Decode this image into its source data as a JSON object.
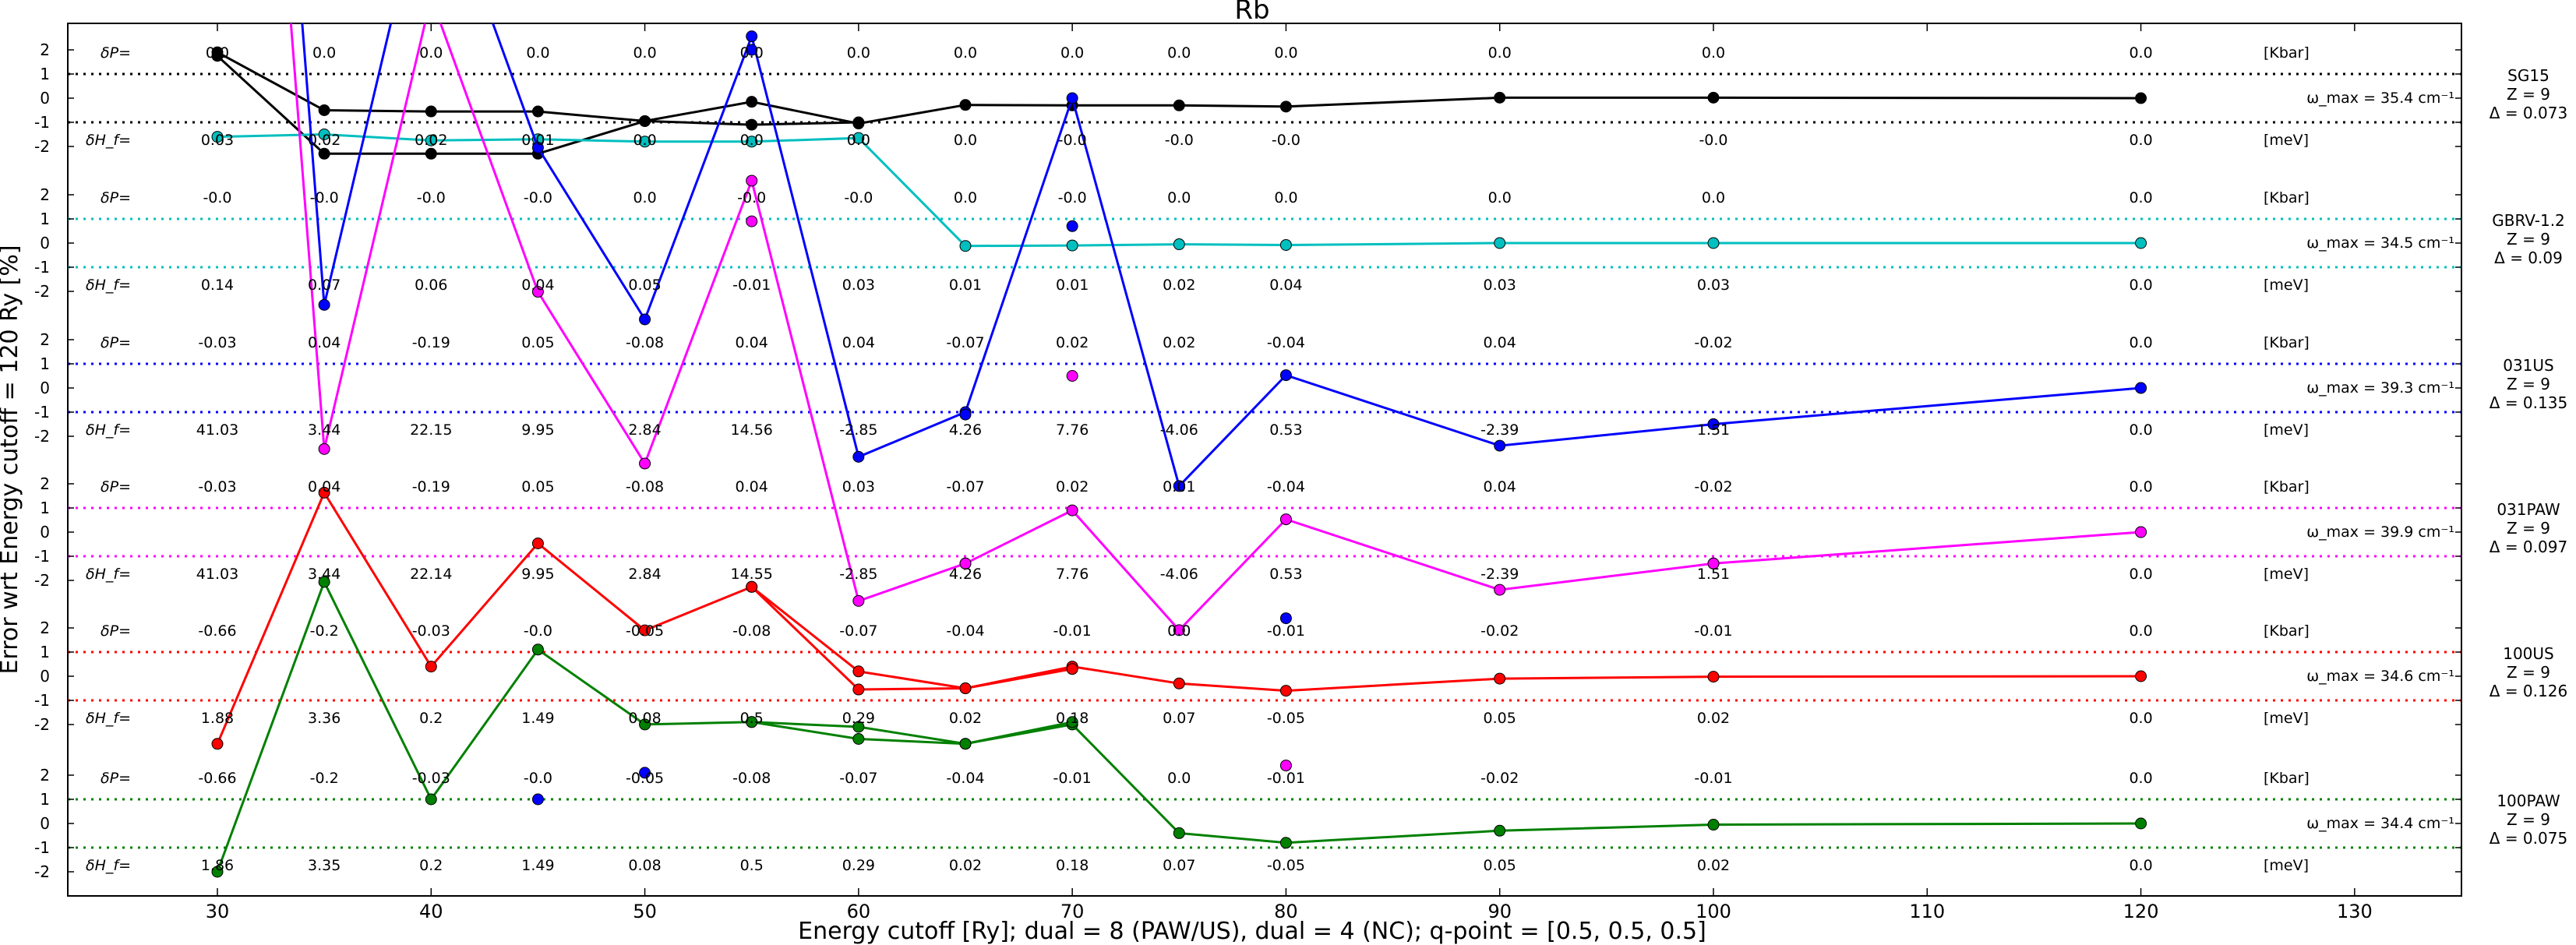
{
  "chart_data": {
    "type": "line",
    "title": "Rb",
    "xlabel": "Energy cutoff [Ry]; dual = 8 (PAW/US), dual = 4 (NC); q-point = [0.5, 0.5, 0.5]",
    "ylabel": "Error wrt Energy cutoff = 120 Ry [%]",
    "xlim": [
      23,
      135
    ],
    "xticks": [
      30,
      40,
      50,
      60,
      70,
      80,
      90,
      100,
      110,
      120,
      130
    ],
    "x": [
      30,
      35,
      40,
      45,
      50,
      55,
      60,
      65,
      70,
      75,
      80,
      90,
      100,
      120
    ],
    "panel_yticks": [
      "2",
      "1",
      "0",
      "-1",
      "-2"
    ],
    "units": {
      "pressure": "[Kbar]",
      "enthalpy": "[meV]"
    },
    "row_labels": {
      "pressure": "δP=",
      "enthalpy": "δH_f="
    },
    "series": [
      {
        "name": "SG15",
        "color": "#000000",
        "z": "Z = 9",
        "delta": "Δ = 0.073",
        "omega": "ω_max = 35.4 cm⁻¹",
        "x_dp": [
          30,
          35,
          40,
          45,
          50,
          55,
          60,
          65,
          70,
          75,
          80,
          90,
          100,
          120
        ],
        "dP": [
          "0.0",
          "0.0",
          "0.0",
          "0.0",
          "0.0",
          "0.0",
          "0.0",
          "0.0",
          "0.0",
          "0.0",
          "0.0",
          "0.0",
          "0.0",
          "0.0"
        ],
        "x_dh": [
          30,
          35,
          40,
          45,
          50,
          55,
          60,
          65,
          70,
          75,
          80,
          100,
          120
        ],
        "dH": [
          "0.03",
          "0.02",
          "0.02",
          "0.01",
          "0.0",
          "0.0",
          "0.0",
          "0.0",
          "-0.0",
          "-0.0",
          "-0.0",
          "-0.0",
          "0.0"
        ],
        "lines": [
          {
            "x": [
              30,
              35,
              40,
              45,
              50,
              55,
              60,
              65,
              70,
              75,
              80,
              90,
              100,
              120
            ],
            "y": [
              1.9,
              -0.5,
              -0.55,
              -0.55,
              -0.95,
              -0.15,
              -1.05,
              -0.28,
              -0.3,
              -0.3,
              -0.35,
              0.02,
              0.02,
              0.0
            ]
          },
          {
            "x": [
              30,
              35,
              40,
              45,
              50,
              55,
              60
            ],
            "y": [
              1.75,
              -2.3,
              -2.3,
              -2.3,
              -0.95,
              -1.1,
              -1.0
            ]
          }
        ]
      },
      {
        "name": "GBRV-1.2",
        "color": "#00bfbf",
        "z": "Z = 9",
        "delta": "Δ = 0.09",
        "omega": "ω_max = 34.5 cm⁻¹",
        "x_dp": [
          30,
          35,
          40,
          45,
          50,
          55,
          60,
          65,
          70,
          75,
          80,
          90,
          100,
          120
        ],
        "dP": [
          "-0.0",
          "-0.0",
          "-0.0",
          "-0.0",
          "0.0",
          "-0.0",
          "-0.0",
          "0.0",
          "-0.0",
          "0.0",
          "0.0",
          "0.0",
          "0.0",
          "0.0"
        ],
        "x_dh": [
          30,
          35,
          40,
          45,
          50,
          55,
          60,
          65,
          70,
          75,
          80,
          90,
          100,
          120
        ],
        "dH": [
          "0.14",
          "0.07",
          "0.06",
          "0.04",
          "0.05",
          "-0.01",
          "0.03",
          "0.01",
          "0.01",
          "0.02",
          "0.04",
          "0.03",
          "0.03",
          "0.0"
        ],
        "lines": [
          {
            "x": [
              30,
              35,
              40,
              45,
              50,
              55,
              60,
              65,
              70,
              75,
              80,
              90,
              100,
              120
            ],
            "y": [
              4.4,
              4.5,
              4.25,
              4.3,
              4.2,
              4.2,
              4.35,
              -0.12,
              -0.1,
              -0.05,
              -0.08,
              0.0,
              0.0,
              0.0
            ]
          }
        ]
      },
      {
        "name": "031US",
        "color": "#0000ff",
        "z": "Z = 9",
        "delta": "Δ = 0.135",
        "omega": "ω_max = 39.3 cm⁻¹",
        "x_dp": [
          30,
          35,
          40,
          45,
          50,
          55,
          60,
          65,
          70,
          75,
          80,
          90,
          100,
          120
        ],
        "dP": [
          "-0.03",
          "0.04",
          "-0.19",
          "0.05",
          "-0.08",
          "0.04",
          "0.04",
          "-0.07",
          "0.02",
          "0.02",
          "-0.04",
          "0.04",
          "-0.02",
          "0.0"
        ],
        "x_dh": [
          30,
          35,
          40,
          45,
          50,
          55,
          60,
          65,
          70,
          75,
          80,
          90,
          100,
          120
        ],
        "dH": [
          "41.03",
          "3.44",
          "22.15",
          "9.95",
          "2.84",
          "14.56",
          "-2.85",
          "4.26",
          "7.76",
          "-4.06",
          "0.53",
          "-2.39",
          "1.51",
          "0.0"
        ],
        "lines": [
          {
            "x": [
              30,
              35,
              40,
              45,
              50,
              55,
              60,
              65,
              70,
              75,
              80,
              90,
              100,
              120
            ],
            "y": [
              60,
              3.44,
              22.15,
              9.95,
              2.84,
              14.56,
              -2.85,
              -1.0,
              12.0,
              -4.06,
              0.53,
              -2.39,
              -1.5,
              0.0
            ]
          }
        ]
      },
      {
        "name": "031PAW",
        "color": "#ff00ff",
        "z": "Z = 9",
        "delta": "Δ = 0.097",
        "omega": "ω_max = 39.9 cm⁻¹",
        "x_dp": [
          30,
          35,
          40,
          45,
          50,
          55,
          60,
          65,
          70,
          75,
          80,
          90,
          100,
          120
        ],
        "dP": [
          "-0.03",
          "0.04",
          "-0.19",
          "0.05",
          "-0.08",
          "0.04",
          "0.03",
          "-0.07",
          "0.02",
          "0.01",
          "-0.04",
          "0.04",
          "-0.02",
          "0.0"
        ],
        "x_dh": [
          30,
          35,
          40,
          45,
          50,
          55,
          60,
          65,
          70,
          75,
          80,
          90,
          100,
          120
        ],
        "dH": [
          "41.03",
          "3.44",
          "22.14",
          "9.95",
          "2.84",
          "14.55",
          "-2.85",
          "4.26",
          "7.76",
          "-4.06",
          "0.53",
          "-2.39",
          "1.51",
          "0.0"
        ],
        "lines": [
          {
            "x": [
              30,
              35,
              40,
              45,
              50,
              55,
              60,
              65,
              70,
              75,
              80,
              90,
              100,
              120
            ],
            "y": [
              60,
              3.44,
              22.14,
              9.95,
              2.84,
              14.55,
              -2.85,
              -1.3,
              0.9,
              -4.06,
              0.53,
              -2.39,
              -1.3,
              0.0
            ]
          }
        ]
      },
      {
        "name": "100US",
        "color": "#ff0000",
        "z": "Z = 9",
        "delta": "Δ = 0.126",
        "omega": "ω_max = 34.6 cm⁻¹",
        "x_dp": [
          30,
          35,
          40,
          45,
          50,
          55,
          60,
          65,
          70,
          75,
          80,
          90,
          100,
          120
        ],
        "dP": [
          "-0.66",
          "-0.2",
          "-0.03",
          "-0.0",
          "-0.05",
          "-0.08",
          "-0.07",
          "-0.04",
          "-0.01",
          "0.0",
          "-0.01",
          "-0.02",
          "-0.01",
          "0.0"
        ],
        "x_dh": [
          30,
          35,
          40,
          45,
          50,
          55,
          60,
          65,
          70,
          75,
          80,
          90,
          100,
          120
        ],
        "dH": [
          "1.88",
          "3.36",
          "0.2",
          "1.49",
          "0.08",
          "0.5",
          "0.29",
          "0.02",
          "0.18",
          "0.07",
          "-0.05",
          "0.05",
          "0.02",
          "0.0"
        ],
        "lines": [
          {
            "x": [
              30,
              35,
              40,
              45,
              50,
              55,
              60,
              65,
              70,
              75,
              80,
              90,
              100,
              120
            ],
            "y": [
              -2.8,
              7.6,
              0.4,
              5.5,
              1.9,
              3.7,
              0.2,
              -0.5,
              0.4,
              -0.3,
              -0.6,
              -0.1,
              -0.02,
              0.0
            ]
          },
          {
            "x": [
              55,
              60,
              65,
              70
            ],
            "y": [
              3.7,
              -0.55,
              -0.5,
              0.3
            ]
          }
        ]
      },
      {
        "name": "100PAW",
        "color": "#008000",
        "z": "Z = 9",
        "delta": "Δ = 0.075",
        "omega": "ω_max = 34.4 cm⁻¹",
        "x_dp": [
          30,
          35,
          40,
          45,
          50,
          55,
          60,
          65,
          70,
          75,
          80,
          90,
          100,
          120
        ],
        "dP": [
          "-0.66",
          "-0.2",
          "-0.03",
          "-0.0",
          "-0.05",
          "-0.08",
          "-0.07",
          "-0.04",
          "-0.01",
          "0.0",
          "-0.01",
          "-0.02",
          "-0.01",
          "0.0"
        ],
        "x_dh": [
          30,
          35,
          40,
          45,
          50,
          55,
          60,
          65,
          70,
          75,
          80,
          90,
          100,
          120
        ],
        "dH": [
          "1.86",
          "3.35",
          "0.2",
          "1.49",
          "0.08",
          "0.5",
          "0.29",
          "0.02",
          "0.18",
          "0.07",
          "-0.05",
          "0.05",
          "0.02",
          "0.0"
        ],
        "lines": [
          {
            "x": [
              30,
              35,
              40,
              45,
              50,
              55,
              60,
              65,
              70,
              75,
              80,
              90,
              100,
              120
            ],
            "y": [
              -2.0,
              10.0,
              1.0,
              7.2,
              4.1,
              4.2,
              3.5,
              3.3,
              4.1,
              -0.4,
              -0.8,
              -0.3,
              -0.05,
              0.0
            ]
          },
          {
            "x": [
              55,
              60,
              65,
              70
            ],
            "y": [
              4.2,
              4.0,
              3.3,
              4.2
            ]
          }
        ]
      }
    ],
    "extra_points": [
      {
        "series": "031US",
        "x": 45,
        "panel": "100PAW",
        "y": 1.0
      },
      {
        "series": "031US",
        "x": 50,
        "panel": "100PAW",
        "y": 2.1
      },
      {
        "series": "031US",
        "x": 55,
        "panel": "SG15",
        "y": 2.0
      },
      {
        "series": "031US",
        "x": 65,
        "panel": "031US",
        "y": -1.1
      },
      {
        "series": "031US",
        "x": 70,
        "panel": "GBRV-1.2",
        "y": 0.7
      },
      {
        "series": "031US",
        "x": 80,
        "panel": "100US",
        "y": 2.4
      },
      {
        "series": "031US",
        "x": 100,
        "panel": "031US",
        "y": -1.5
      },
      {
        "series": "031US",
        "x": 120,
        "panel": "031US",
        "y": 0.0
      },
      {
        "series": "031PAW",
        "x": 55,
        "panel": "GBRV-1.2",
        "y": 0.9
      },
      {
        "series": "031PAW",
        "x": 65,
        "panel": "031PAW",
        "y": -1.3
      },
      {
        "series": "031PAW",
        "x": 70,
        "panel": "031US",
        "y": 0.5
      },
      {
        "series": "031PAW",
        "x": 80,
        "panel": "100PAW",
        "y": 2.4
      },
      {
        "series": "031PAW",
        "x": 100,
        "panel": "031PAW",
        "y": -1.3
      },
      {
        "series": "031PAW",
        "x": 120,
        "panel": "031PAW",
        "y": 0.0
      }
    ],
    "grid": false,
    "legend": "right"
  }
}
